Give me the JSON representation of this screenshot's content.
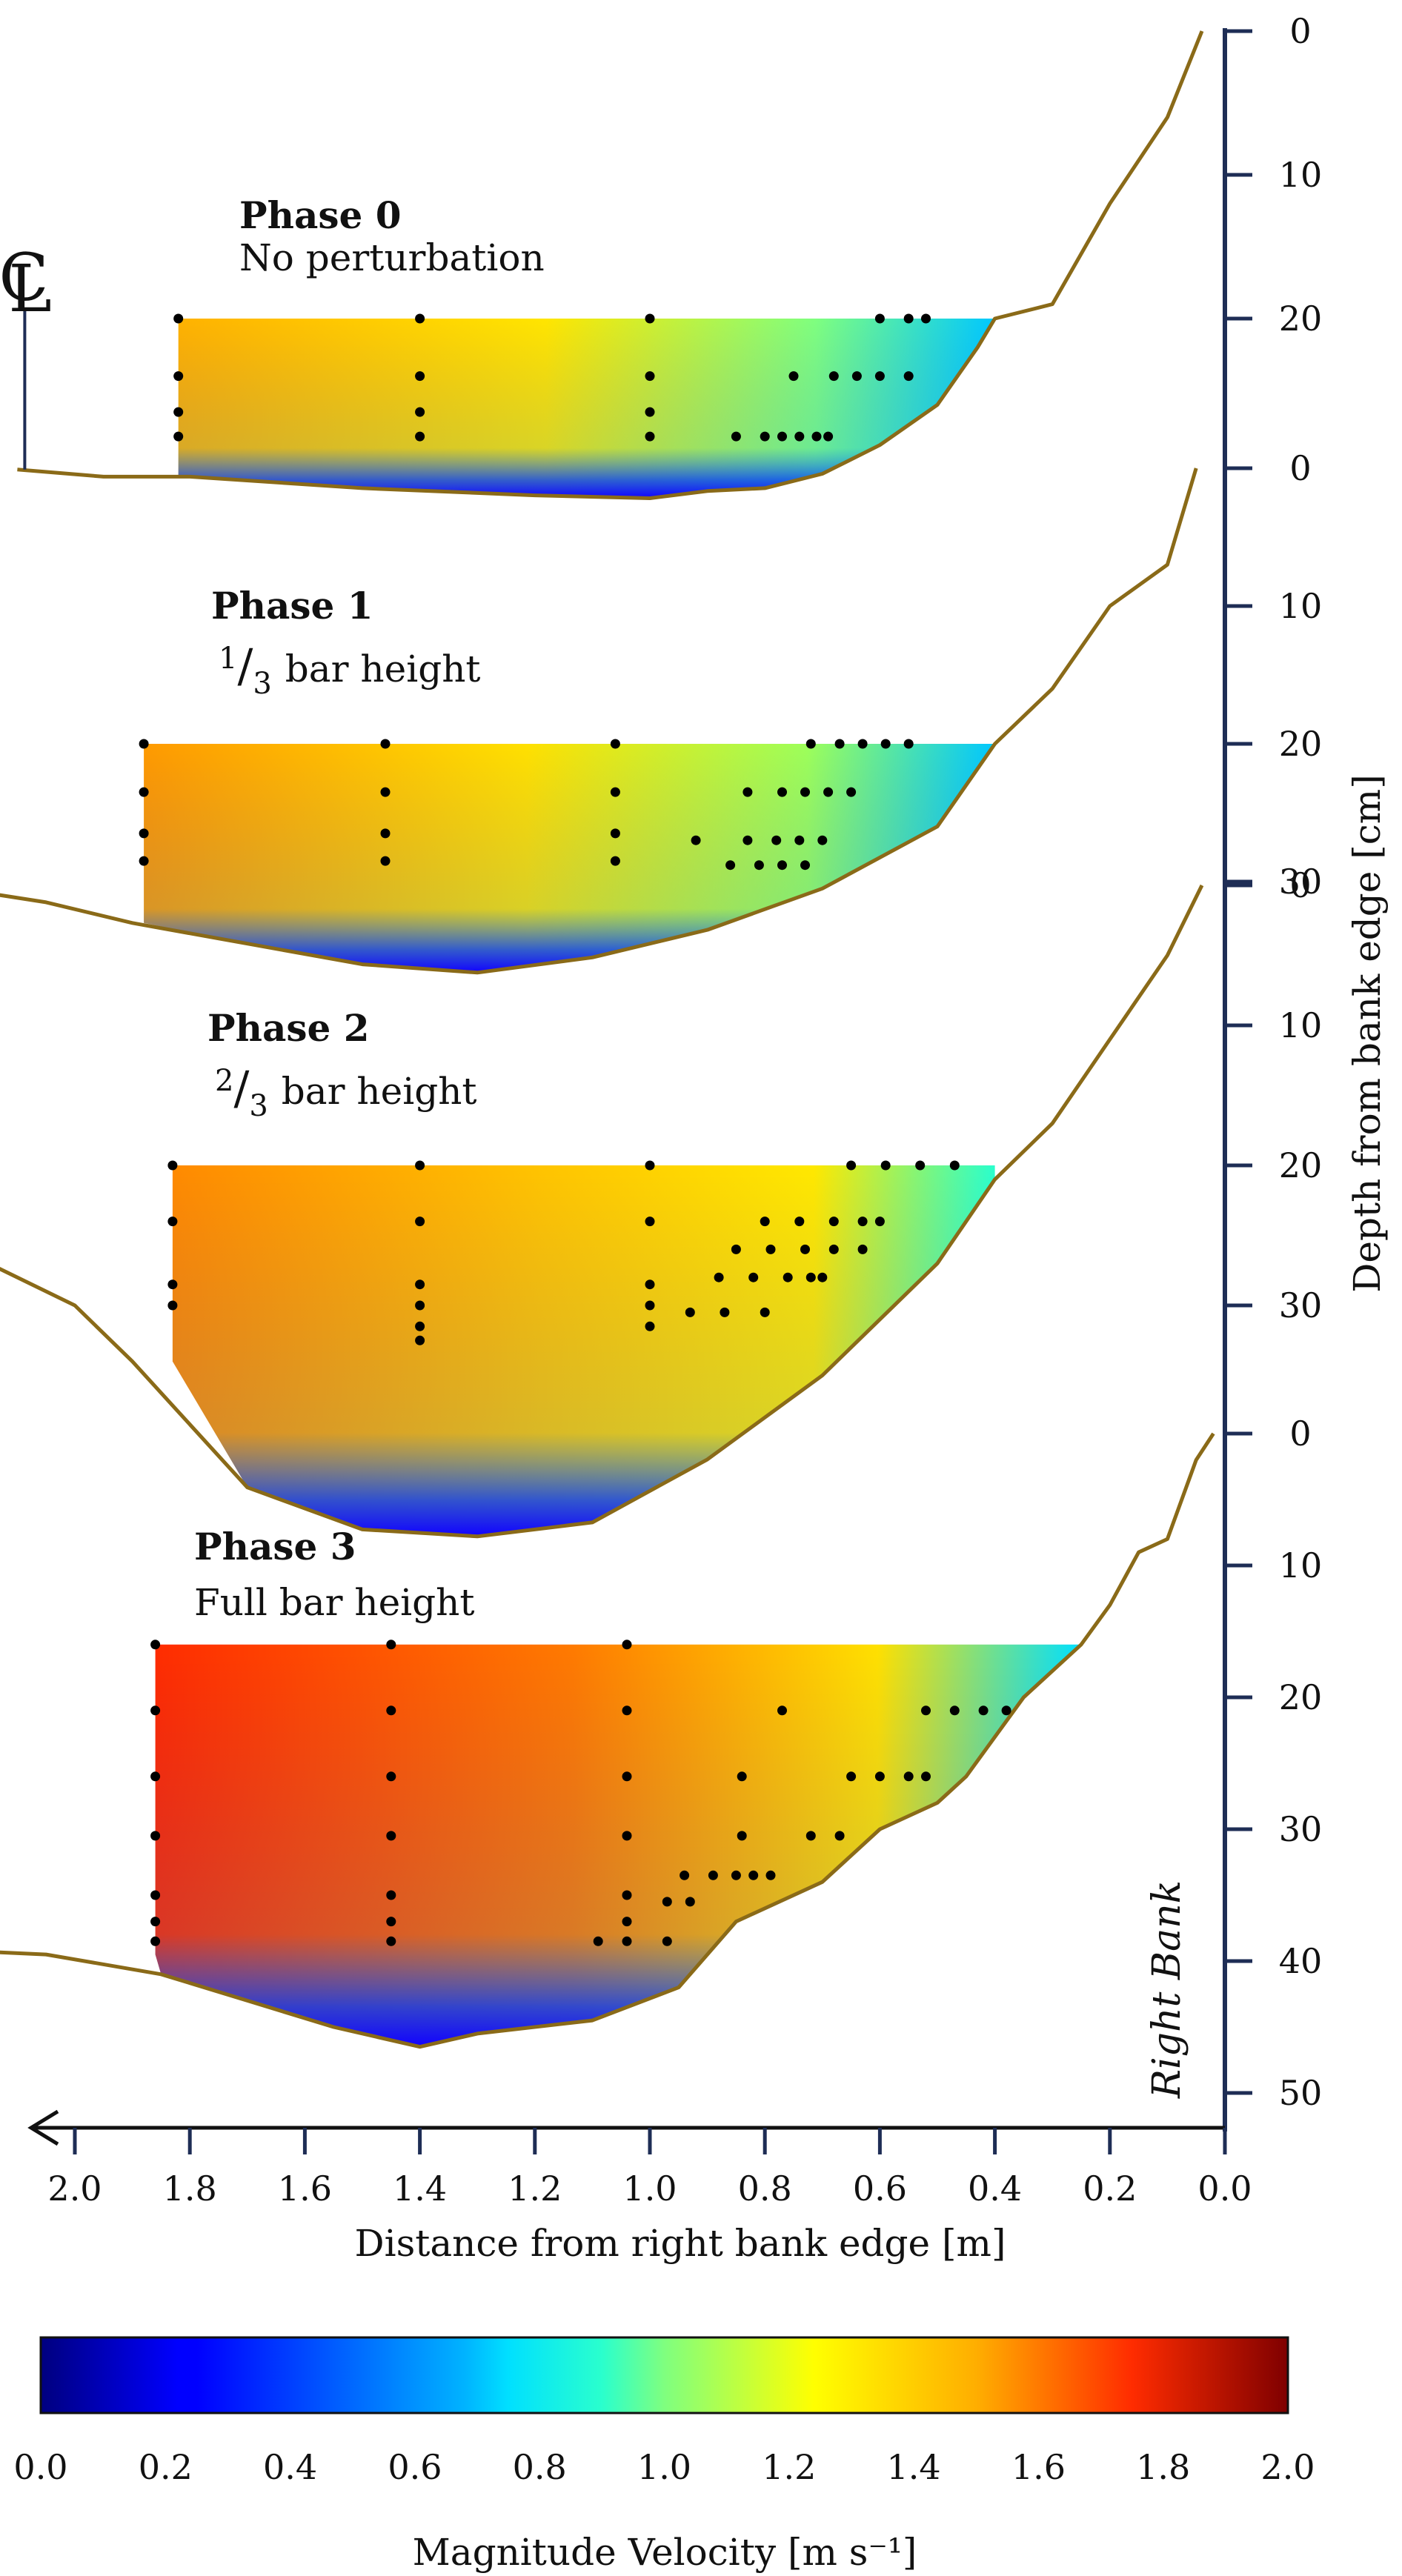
{
  "chart_data": {
    "type": "heatmap",
    "xlabel": "Distance from right bank edge [m]",
    "ylabel": "Depth  from bank edge [cm]",
    "x_reversed": true,
    "xlim": [
      2.3,
      0.0
    ],
    "x_ticks": [
      2.0,
      1.8,
      1.6,
      1.4,
      1.2,
      1.0,
      0.8,
      0.6,
      0.4,
      0.2,
      0.0
    ],
    "x_tick_labels": [
      "2.0",
      "1.8",
      "1.6",
      "1.4",
      "1.2",
      "1.0",
      "0.8",
      "0.6",
      "0.4",
      "0.2",
      "0.0"
    ],
    "centerline_label": "CL",
    "bank_label": "Right Bank",
    "colorbar": {
      "label": "Magnitude Velocity [m s⁻¹]",
      "range": [
        0.0,
        2.0
      ],
      "ticks": [
        "0.0",
        "0.2",
        "0.4",
        "0.6",
        "0.8",
        "1.0",
        "1.2",
        "1.4",
        "1.6",
        "1.8",
        "2.0"
      ],
      "colormap": "jet"
    },
    "panels": [
      {
        "title": "Phase 0",
        "subtitle": "No perturbation",
        "subtitle_fraction": null,
        "depth_ticks": [
          0,
          10,
          20
        ],
        "water_surface_depth": 20,
        "channel_bed": [
          [
            2.1,
            30.5
          ],
          [
            1.95,
            31
          ],
          [
            1.8,
            31
          ],
          [
            1.5,
            31.8
          ],
          [
            1.2,
            32.3
          ],
          [
            1.0,
            32.5
          ],
          [
            0.9,
            32
          ],
          [
            0.8,
            31.8
          ],
          [
            0.7,
            30.8
          ],
          [
            0.6,
            28.8
          ],
          [
            0.5,
            26
          ],
          [
            0.43,
            22
          ],
          [
            0.4,
            20
          ]
        ],
        "left_bank_x": 2.1,
        "bank_profile": [
          [
            0.4,
            20
          ],
          [
            0.3,
            19
          ],
          [
            0.2,
            12
          ],
          [
            0.1,
            6
          ],
          [
            0.04,
            0
          ]
        ],
        "measurement_points": [
          [
            1.82,
            20
          ],
          [
            1.82,
            24
          ],
          [
            1.82,
            26.5
          ],
          [
            1.82,
            28.2
          ],
          [
            1.4,
            20
          ],
          [
            1.4,
            24
          ],
          [
            1.4,
            26.5
          ],
          [
            1.4,
            28.2
          ],
          [
            1.0,
            20
          ],
          [
            1.0,
            24
          ],
          [
            1.0,
            26.5
          ],
          [
            1.0,
            28.2
          ],
          [
            0.6,
            20
          ],
          [
            0.55,
            20
          ],
          [
            0.52,
            20
          ],
          [
            0.75,
            24
          ],
          [
            0.68,
            24
          ],
          [
            0.64,
            24
          ],
          [
            0.6,
            24
          ],
          [
            0.55,
            24
          ],
          [
            0.85,
            28.2
          ],
          [
            0.8,
            28.2
          ],
          [
            0.77,
            28.2
          ],
          [
            0.74,
            28.2
          ],
          [
            0.71,
            28.2
          ],
          [
            0.69,
            28.2
          ]
        ],
        "velocity_field": "surface ~1.1-1.2 m/s on left, decreasing to ~0.5 m/s near right bank; near-zero at bed"
      },
      {
        "title": "Phase 1",
        "subtitle": "bar height",
        "subtitle_fraction": [
          "1",
          "3"
        ],
        "depth_ticks": [
          0,
          10,
          20,
          30
        ],
        "water_surface_depth": 20,
        "channel_bed": [
          [
            2.28,
            30
          ],
          [
            2.05,
            31.5
          ],
          [
            1.9,
            33
          ],
          [
            1.7,
            34.5
          ],
          [
            1.5,
            36
          ],
          [
            1.3,
            36.6
          ],
          [
            1.1,
            35.5
          ],
          [
            0.9,
            33.5
          ],
          [
            0.7,
            30.5
          ],
          [
            0.5,
            26
          ],
          [
            0.4,
            20
          ]
        ],
        "left_bank_x": 2.28,
        "bank_profile": [
          [
            0.4,
            20
          ],
          [
            0.3,
            16
          ],
          [
            0.2,
            10
          ],
          [
            0.1,
            7
          ],
          [
            0.05,
            0
          ]
        ],
        "measurement_points": [
          [
            1.88,
            20
          ],
          [
            1.88,
            23.5
          ],
          [
            1.88,
            26.5
          ],
          [
            1.88,
            28.5
          ],
          [
            1.46,
            20
          ],
          [
            1.46,
            23.5
          ],
          [
            1.46,
            26.5
          ],
          [
            1.46,
            28.5
          ],
          [
            1.06,
            20
          ],
          [
            1.06,
            23.5
          ],
          [
            1.06,
            26.5
          ],
          [
            1.06,
            28.5
          ],
          [
            0.72,
            20
          ],
          [
            0.67,
            20
          ],
          [
            0.63,
            20
          ],
          [
            0.59,
            20
          ],
          [
            0.55,
            20
          ],
          [
            0.83,
            23.5
          ],
          [
            0.77,
            23.5
          ],
          [
            0.73,
            23.5
          ],
          [
            0.69,
            23.5
          ],
          [
            0.65,
            23.5
          ],
          [
            0.92,
            27
          ],
          [
            0.83,
            27
          ],
          [
            0.78,
            27
          ],
          [
            0.74,
            27
          ],
          [
            0.7,
            27
          ],
          [
            0.86,
            28.8
          ],
          [
            0.81,
            28.8
          ],
          [
            0.77,
            28.8
          ],
          [
            0.73,
            28.8
          ]
        ],
        "velocity_field": "surface ~1.3-1.4 m/s on left, decreasing to ~0.5 m/s near right bank"
      },
      {
        "title": "Phase 2",
        "subtitle": "bar height",
        "subtitle_fraction": [
          "2",
          "3"
        ],
        "depth_ticks": [
          0,
          10,
          20,
          30
        ],
        "water_surface_depth": 20,
        "channel_bed": [
          [
            2.3,
            24
          ],
          [
            2.0,
            30
          ],
          [
            1.9,
            34
          ],
          [
            1.7,
            43
          ],
          [
            1.5,
            46
          ],
          [
            1.3,
            46.5
          ],
          [
            1.1,
            45.5
          ],
          [
            0.9,
            41
          ],
          [
            0.7,
            35
          ],
          [
            0.5,
            27
          ],
          [
            0.4,
            21
          ]
        ],
        "left_bank_x": 2.3,
        "bank_profile": [
          [
            0.4,
            21
          ],
          [
            0.3,
            17
          ],
          [
            0.2,
            11
          ],
          [
            0.1,
            5
          ],
          [
            0.04,
            0
          ]
        ],
        "measurement_points": [
          [
            1.83,
            20
          ],
          [
            1.83,
            24
          ],
          [
            1.83,
            28.5
          ],
          [
            1.83,
            30
          ],
          [
            1.4,
            20
          ],
          [
            1.4,
            24
          ],
          [
            1.4,
            28.5
          ],
          [
            1.4,
            30
          ],
          [
            1.4,
            31.5
          ],
          [
            1.4,
            32.5
          ],
          [
            1.0,
            20
          ],
          [
            1.0,
            24
          ],
          [
            1.0,
            28.5
          ],
          [
            1.0,
            30
          ],
          [
            1.0,
            31.5
          ],
          [
            0.65,
            20
          ],
          [
            0.59,
            20
          ],
          [
            0.53,
            20
          ],
          [
            0.47,
            20
          ],
          [
            0.8,
            24
          ],
          [
            0.74,
            24
          ],
          [
            0.68,
            24
          ],
          [
            0.63,
            24
          ],
          [
            0.6,
            24
          ],
          [
            0.85,
            26
          ],
          [
            0.79,
            26
          ],
          [
            0.73,
            26
          ],
          [
            0.68,
            26
          ],
          [
            0.63,
            26
          ],
          [
            0.88,
            28
          ],
          [
            0.82,
            28
          ],
          [
            0.76,
            28
          ],
          [
            0.72,
            28
          ],
          [
            0.7,
            28
          ],
          [
            0.93,
            30.5
          ],
          [
            0.87,
            30.5
          ],
          [
            0.8,
            30.5
          ]
        ],
        "velocity_field": "surface ~1.5 m/s on left, ~1.3 m/s mid, decreasing to ~0.5 m/s near bed and right bank"
      },
      {
        "title": "Phase 3",
        "subtitle": "Full bar height",
        "subtitle_fraction": null,
        "depth_ticks": [
          0,
          10,
          20,
          30,
          40,
          50
        ],
        "water_surface_depth": 16,
        "channel_bed": [
          [
            2.3,
            39
          ],
          [
            2.05,
            39.5
          ],
          [
            1.85,
            41
          ],
          [
            1.7,
            43
          ],
          [
            1.55,
            45
          ],
          [
            1.4,
            46.5
          ],
          [
            1.3,
            45.5
          ],
          [
            1.1,
            44.5
          ],
          [
            0.95,
            42
          ],
          [
            0.85,
            37
          ],
          [
            0.7,
            34
          ],
          [
            0.6,
            30
          ],
          [
            0.5,
            28
          ],
          [
            0.45,
            26
          ],
          [
            0.35,
            20
          ],
          [
            0.25,
            16
          ]
        ],
        "left_bank_x": 2.3,
        "bank_profile": [
          [
            0.25,
            16
          ],
          [
            0.2,
            13
          ],
          [
            0.15,
            9
          ],
          [
            0.1,
            8
          ],
          [
            0.05,
            2
          ],
          [
            0.02,
            0
          ]
        ],
        "measurement_points": [
          [
            1.86,
            16
          ],
          [
            1.86,
            21
          ],
          [
            1.86,
            26
          ],
          [
            1.86,
            30.5
          ],
          [
            1.86,
            35
          ],
          [
            1.86,
            37
          ],
          [
            1.86,
            38.5
          ],
          [
            1.45,
            16
          ],
          [
            1.45,
            21
          ],
          [
            1.45,
            26
          ],
          [
            1.45,
            30.5
          ],
          [
            1.45,
            35
          ],
          [
            1.45,
            37
          ],
          [
            1.45,
            38.5
          ],
          [
            1.04,
            16
          ],
          [
            1.04,
            21
          ],
          [
            1.04,
            26
          ],
          [
            1.04,
            30.5
          ],
          [
            1.04,
            35
          ],
          [
            1.04,
            37
          ],
          [
            1.04,
            38.5
          ],
          [
            0.77,
            21
          ],
          [
            0.52,
            21
          ],
          [
            0.47,
            21
          ],
          [
            0.42,
            21
          ],
          [
            0.38,
            21
          ],
          [
            0.84,
            26
          ],
          [
            0.65,
            26
          ],
          [
            0.6,
            26
          ],
          [
            0.55,
            26
          ],
          [
            0.52,
            26
          ],
          [
            0.84,
            30.5
          ],
          [
            0.72,
            30.5
          ],
          [
            0.67,
            30.5
          ],
          [
            0.94,
            33.5
          ],
          [
            0.89,
            33.5
          ],
          [
            0.85,
            33.5
          ],
          [
            0.82,
            33.5
          ],
          [
            0.79,
            33.5
          ],
          [
            0.97,
            35.5
          ],
          [
            0.93,
            35.5
          ],
          [
            1.09,
            38.5
          ],
          [
            0.97,
            38.5
          ]
        ],
        "velocity_field": "surface ~1.7-1.8 m/s on left, ~1.5 m/s mid, decreasing to ~0.6 m/s near right bank; near-zero at bed"
      }
    ]
  }
}
